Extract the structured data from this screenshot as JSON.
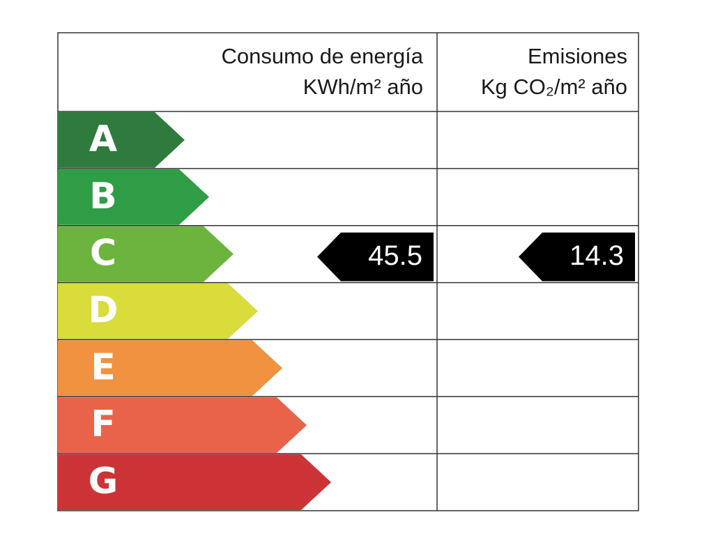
{
  "header": {
    "energy": [
      "Consumo de energía",
      "KWh/m² año"
    ],
    "emissions": [
      "Emisiones",
      "Kg CO₂/m² año"
    ]
  },
  "rows": [
    {
      "letter": "A",
      "color": "#2f7b3e"
    },
    {
      "letter": "B",
      "color": "#2f9c46"
    },
    {
      "letter": "C",
      "color": "#6db43f",
      "energy": 45.5,
      "emissions": 14.3
    },
    {
      "letter": "D",
      "color": "#d9dc3b"
    },
    {
      "letter": "E",
      "color": "#f0923f"
    },
    {
      "letter": "F",
      "color": "#e9634b"
    },
    {
      "letter": "G",
      "color": "#cc3337"
    }
  ]
}
